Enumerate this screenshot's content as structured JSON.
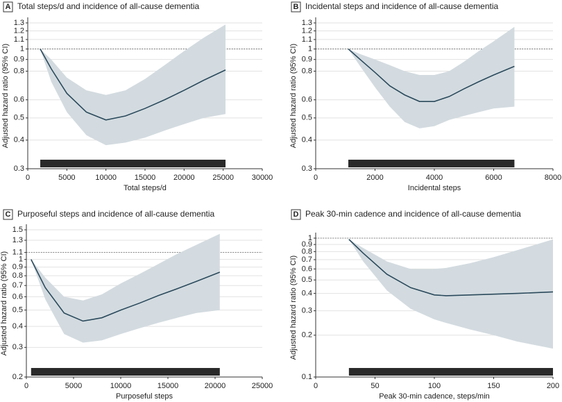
{
  "chart_data": [
    {
      "type": "line",
      "panel": "A",
      "title": "Total steps/d and incidence of all-cause dementia",
      "xlabel": "Total steps/d",
      "ylabel": "Adjusted hazard ratio (95% CI)",
      "log_y": true,
      "color": "#2b4a5c",
      "band_color": "#d3dbe0",
      "reference_line": 1,
      "x": [
        1600,
        3000,
        5000,
        7500,
        10000,
        12500,
        15000,
        17500,
        20000,
        22500,
        25300
      ],
      "values": [
        1.0,
        0.82,
        0.64,
        0.53,
        0.49,
        0.51,
        0.55,
        0.6,
        0.66,
        0.73,
        0.81
      ],
      "ci_upper": [
        1.0,
        0.9,
        0.75,
        0.66,
        0.63,
        0.66,
        0.74,
        0.85,
        0.98,
        1.12,
        1.28
      ],
      "ci_lower": [
        1.0,
        0.72,
        0.53,
        0.42,
        0.38,
        0.39,
        0.41,
        0.44,
        0.47,
        0.5,
        0.52
      ],
      "xlim": [
        0,
        30000
      ],
      "xticks": [
        0,
        5000,
        10000,
        15000,
        20000,
        25000,
        30000
      ],
      "ylim": [
        0.3,
        1.3
      ],
      "yticks": [
        0.3,
        0.4,
        0.5,
        0.6,
        0.8,
        0.9,
        1,
        1.1,
        1.2,
        1.3
      ]
    },
    {
      "type": "line",
      "panel": "B",
      "title": "Incidental steps and incidence of all-cause dementia",
      "xlabel": "Incidental steps",
      "ylabel": "Adjusted hazard ratio (95% CI)",
      "log_y": true,
      "color": "#2b4a5c",
      "band_color": "#d3dbe0",
      "reference_line": 1,
      "x": [
        1100,
        1500,
        2000,
        2500,
        3000,
        3500,
        4000,
        4500,
        5000,
        5500,
        6000,
        6700
      ],
      "values": [
        1.0,
        0.9,
        0.79,
        0.69,
        0.63,
        0.59,
        0.59,
        0.62,
        0.67,
        0.72,
        0.77,
        0.84
      ],
      "ci_upper": [
        1.0,
        0.95,
        0.9,
        0.85,
        0.8,
        0.77,
        0.77,
        0.8,
        0.88,
        0.98,
        1.08,
        1.25
      ],
      "ci_lower": [
        1.0,
        0.84,
        0.68,
        0.56,
        0.48,
        0.45,
        0.46,
        0.49,
        0.51,
        0.53,
        0.55,
        0.56
      ],
      "xlim": [
        0,
        8000
      ],
      "xticks": [
        0,
        2000,
        4000,
        6000,
        8000
      ],
      "ylim": [
        0.3,
        1.3
      ],
      "yticks": [
        0.3,
        0.4,
        0.5,
        0.6,
        0.8,
        0.9,
        1,
        1.1,
        1.2,
        1.3
      ]
    },
    {
      "type": "line",
      "panel": "C",
      "title": "Purposeful steps and incidence of all-cause dementia",
      "xlabel": "Purposeful steps",
      "ylabel": "Adjusted hazard ratio (95% CI)",
      "log_y": true,
      "color": "#2b4a5c",
      "band_color": "#d3dbe0",
      "reference_line": 1.1,
      "x": [
        500,
        2000,
        4000,
        6000,
        8000,
        10000,
        12000,
        14000,
        16000,
        18000,
        20500
      ],
      "values": [
        1.0,
        0.68,
        0.48,
        0.43,
        0.45,
        0.5,
        0.55,
        0.61,
        0.67,
        0.74,
        0.84
      ],
      "ci_upper": [
        1.0,
        0.78,
        0.6,
        0.57,
        0.62,
        0.72,
        0.82,
        0.94,
        1.08,
        1.22,
        1.42
      ],
      "ci_lower": [
        1.0,
        0.58,
        0.36,
        0.32,
        0.33,
        0.36,
        0.39,
        0.42,
        0.45,
        0.48,
        0.5
      ],
      "xlim": [
        0,
        25000
      ],
      "xticks": [
        0,
        5000,
        10000,
        15000,
        20000,
        25000
      ],
      "ylim": [
        0.2,
        1.5
      ],
      "yticks": [
        0.2,
        0.3,
        0.4,
        0.5,
        0.6,
        0.7,
        0.8,
        0.9,
        1,
        1.1,
        1.3,
        1.5
      ]
    },
    {
      "type": "line",
      "panel": "D",
      "title": "Peak 30-min cadence and incidence of all-cause dementia",
      "xlabel": "Peak 30-min cadence, steps/min",
      "ylabel": "Adjusted hazard ratio (95% CI)",
      "log_y": true,
      "color": "#2b4a5c",
      "band_color": "#d3dbe0",
      "reference_line": 1,
      "x": [
        28,
        40,
        60,
        80,
        100,
        110,
        130,
        150,
        170,
        200
      ],
      "values": [
        0.98,
        0.78,
        0.55,
        0.44,
        0.39,
        0.385,
        0.39,
        0.395,
        0.4,
        0.41
      ],
      "ci_upper": [
        0.98,
        0.85,
        0.68,
        0.6,
        0.6,
        0.61,
        0.66,
        0.73,
        0.82,
        0.98
      ],
      "ci_lower": [
        0.98,
        0.68,
        0.42,
        0.31,
        0.26,
        0.245,
        0.22,
        0.2,
        0.18,
        0.16
      ],
      "xlim": [
        0,
        200
      ],
      "xticks": [
        0,
        50,
        100,
        150,
        200
      ],
      "ylim": [
        0.1,
        1
      ],
      "yticks": [
        0.1,
        0.2,
        0.3,
        0.4,
        0.5,
        0.6,
        0.7,
        0.8,
        0.9,
        1
      ]
    }
  ]
}
